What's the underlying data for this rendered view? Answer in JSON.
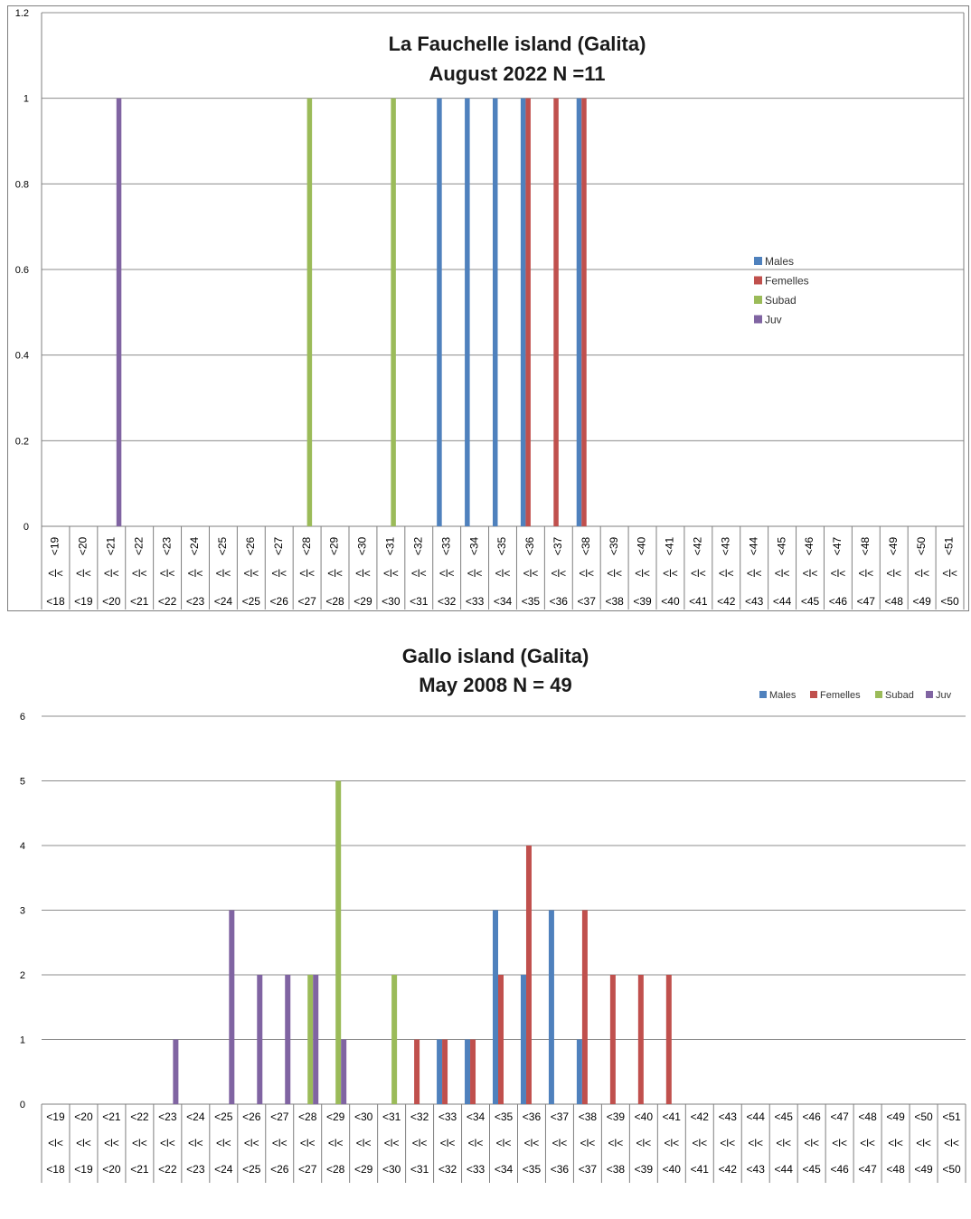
{
  "colors": {
    "males": "#4F81BD",
    "femelles": "#C0504D",
    "subad": "#9BBB59",
    "juv": "#8064A2",
    "grid": "#8c8c8c",
    "axis": "#7f7f7f",
    "text": "#000000"
  },
  "chart_data": [
    {
      "type": "bar",
      "title": "La Fauchelle island (Galita)",
      "subtitle": "August 2022 N =11",
      "xlabel": "",
      "ylabel": "",
      "ylim": [
        0,
        1.2
      ],
      "yticks": [
        "0",
        "0.2",
        "0.4",
        "0.6",
        "0.8",
        "1",
        "1.2"
      ],
      "grid": true,
      "legend_position": "right",
      "rotated_upper_labels": true,
      "categories_upper": [
        "<19",
        "<20",
        "<21",
        "<22",
        "<23",
        "<24",
        "<25",
        "<26",
        "<27",
        "<28",
        "<29",
        "<30",
        "<31",
        "<32",
        "<33",
        "<34",
        "<35",
        "<36",
        "<37",
        "<38",
        "<39",
        "<40",
        "<41",
        "<42",
        "<43",
        "<44",
        "<45",
        "<46",
        "<47",
        "<48",
        "<49",
        "<50",
        "<51"
      ],
      "categories_middle": "<l<",
      "categories_lower": [
        "<18",
        "<19",
        "<20",
        "<21",
        "<22",
        "<23",
        "<24",
        "<25",
        "<26",
        "<27",
        "<28",
        "<29",
        "<30",
        "<31",
        "<32",
        "<33",
        "<34",
        "<35",
        "<36",
        "<37",
        "<38",
        "<39",
        "<40",
        "<41",
        "<42",
        "<43",
        "<44",
        "<45",
        "<46",
        "<47",
        "<48",
        "<49",
        "<50"
      ],
      "series": [
        {
          "name": "Males",
          "values": [
            0,
            0,
            0,
            0,
            0,
            0,
            0,
            0,
            0,
            0,
            0,
            0,
            0,
            0,
            1,
            1,
            1,
            1,
            0,
            1,
            0,
            0,
            0,
            0,
            0,
            0,
            0,
            0,
            0,
            0,
            0,
            0,
            0
          ]
        },
        {
          "name": "Femelles",
          "values": [
            0,
            0,
            0,
            0,
            0,
            0,
            0,
            0,
            0,
            0,
            0,
            0,
            0,
            0,
            0,
            0,
            0,
            1,
            1,
            1,
            0,
            0,
            0,
            0,
            0,
            0,
            0,
            0,
            0,
            0,
            0,
            0,
            0
          ]
        },
        {
          "name": "Subad",
          "values": [
            0,
            0,
            0,
            0,
            0,
            0,
            0,
            0,
            0,
            1,
            0,
            0,
            1,
            0,
            0,
            0,
            0,
            0,
            0,
            0,
            0,
            0,
            0,
            0,
            0,
            0,
            0,
            0,
            0,
            0,
            0,
            0,
            0
          ]
        },
        {
          "name": "Juv",
          "values": [
            0,
            0,
            1,
            0,
            0,
            0,
            0,
            0,
            0,
            0,
            0,
            0,
            0,
            0,
            0,
            0,
            0,
            0,
            0,
            0,
            0,
            0,
            0,
            0,
            0,
            0,
            0,
            0,
            0,
            0,
            0,
            0,
            0
          ]
        }
      ]
    },
    {
      "type": "bar",
      "title": "Gallo island (Galita)",
      "subtitle": "May 2008 N = 49",
      "xlabel": "",
      "ylabel": "",
      "ylim": [
        0,
        6
      ],
      "yticks": [
        "0",
        "1",
        "2",
        "3",
        "4",
        "5",
        "6"
      ],
      "grid": true,
      "legend_position": "top-right",
      "rotated_upper_labels": false,
      "categories_upper": [
        "<19",
        "<20",
        "<21",
        "<22",
        "<23",
        "<24",
        "<25",
        "<26",
        "<27",
        "<28",
        "<29",
        "<30",
        "<31",
        "<32",
        "<33",
        "<34",
        "<35",
        "<36",
        "<37",
        "<38",
        "<39",
        "<40",
        "<41",
        "<42",
        "<43",
        "<44",
        "<45",
        "<46",
        "<47",
        "<48",
        "<49",
        "<50",
        "<51"
      ],
      "categories_middle": "<l<",
      "categories_lower": [
        "<18",
        "<19",
        "<20",
        "<21",
        "<22",
        "<23",
        "<24",
        "<25",
        "<26",
        "<27",
        "<28",
        "<29",
        "<30",
        "<31",
        "<32",
        "<33",
        "<34",
        "<35",
        "<36",
        "<37",
        "<38",
        "<39",
        "<40",
        "<41",
        "<42",
        "<43",
        "<44",
        "<45",
        "<46",
        "<47",
        "<48",
        "<49",
        "<50"
      ],
      "series": [
        {
          "name": "Males",
          "values": [
            0,
            0,
            0,
            0,
            0,
            0,
            0,
            0,
            0,
            0,
            0,
            0,
            0,
            0,
            1,
            1,
            3,
            2,
            3,
            1,
            0,
            0,
            0,
            0,
            0,
            0,
            0,
            0,
            0,
            0,
            0,
            0,
            0
          ]
        },
        {
          "name": "Femelles",
          "values": [
            0,
            0,
            0,
            0,
            0,
            0,
            0,
            0,
            0,
            0,
            0,
            0,
            0,
            1,
            1,
            1,
            2,
            4,
            0,
            3,
            2,
            2,
            2,
            0,
            0,
            0,
            0,
            0,
            0,
            0,
            0,
            0,
            0
          ]
        },
        {
          "name": "Subad",
          "values": [
            0,
            0,
            0,
            0,
            0,
            0,
            0,
            0,
            0,
            2,
            5,
            0,
            2,
            0,
            0,
            0,
            0,
            0,
            0,
            0,
            0,
            0,
            0,
            0,
            0,
            0,
            0,
            0,
            0,
            0,
            0,
            0,
            0
          ]
        },
        {
          "name": "Juv",
          "values": [
            0,
            0,
            0,
            0,
            1,
            0,
            3,
            2,
            2,
            2,
            1,
            0,
            0,
            0,
            0,
            0,
            0,
            0,
            0,
            0,
            0,
            0,
            0,
            0,
            0,
            0,
            0,
            0,
            0,
            0,
            0,
            0,
            0
          ]
        }
      ]
    }
  ]
}
